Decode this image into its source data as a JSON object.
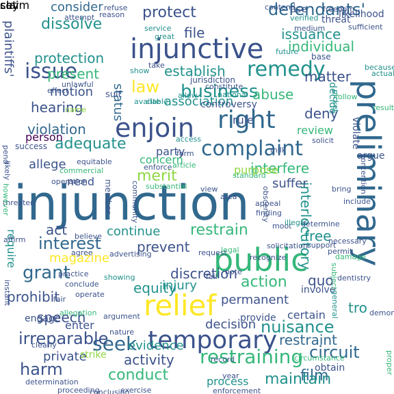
{
  "palette": {
    "dark_purple": "#440154",
    "deep_blue": "#3b528b",
    "steel_blue": "#31688e",
    "teal": "#21918c",
    "green": "#35b779",
    "light_green": "#90d743",
    "yellow": "#fde725",
    "background": "#ffffff"
  },
  "words": [
    {
      "text": "injunction",
      "color": "#31688e"
    },
    {
      "text": "preliminary",
      "color": "#31688e"
    },
    {
      "text": "injunctive",
      "color": "#3b528b"
    },
    {
      "text": "temporary",
      "color": "#3b528b"
    },
    {
      "text": "relief",
      "color": "#fde725"
    },
    {
      "text": "public",
      "color": "#35b779"
    },
    {
      "text": "enjoin",
      "color": "#3b528b"
    },
    {
      "text": "right",
      "color": "#31688e"
    },
    {
      "text": "complaint",
      "color": "#31688e"
    },
    {
      "text": "remedy",
      "color": "#21918c"
    },
    {
      "text": "issue",
      "color": "#3b528b"
    },
    {
      "text": "restraining",
      "color": "#35b779"
    },
    {
      "text": "seek",
      "color": "#31688e"
    },
    {
      "text": "grant",
      "color": "#31688e"
    },
    {
      "text": "irreparable",
      "color": "#3b528b"
    },
    {
      "text": "defendants'",
      "color": "#31688e"
    },
    {
      "text": "plaintiffs'",
      "color": "#3b528b"
    },
    {
      "text": "business",
      "color": "#21918c"
    },
    {
      "text": "law",
      "color": "#fde725"
    },
    {
      "text": "interest",
      "color": "#31688e"
    },
    {
      "text": "nuisance",
      "color": "#21918c"
    },
    {
      "text": "protection",
      "color": "#21918c"
    },
    {
      "text": "dissolve",
      "color": "#21918c"
    },
    {
      "text": "protect",
      "color": "#3b528b"
    },
    {
      "text": "issuance",
      "color": "#21918c"
    },
    {
      "text": "individual",
      "color": "#35b779"
    },
    {
      "text": "establish",
      "color": "#21918c"
    },
    {
      "text": "hearing",
      "color": "#3b528b"
    },
    {
      "text": "adequate",
      "color": "#21918c"
    },
    {
      "text": "violation",
      "color": "#31688e"
    },
    {
      "text": "merit",
      "color": "#90d743"
    },
    {
      "text": "interfere",
      "color": "#35b779"
    },
    {
      "text": "action",
      "color": "#35b779"
    },
    {
      "text": "discretion",
      "color": "#3b528b"
    },
    {
      "text": "restrain",
      "color": "#35b779"
    },
    {
      "text": "equity",
      "color": "#21918c"
    },
    {
      "text": "speech",
      "color": "#3b528b"
    },
    {
      "text": "harm",
      "color": "#3b528b"
    },
    {
      "text": "circuit",
      "color": "#31688e"
    },
    {
      "text": "restraint",
      "color": "#31688e"
    },
    {
      "text": "activity",
      "color": "#3b528b"
    },
    {
      "text": "conduct",
      "color": "#35b779"
    },
    {
      "text": "evidence",
      "color": "#21918c"
    },
    {
      "text": "film",
      "color": "#31688e"
    },
    {
      "text": "status",
      "color": "#31688e"
    },
    {
      "text": "association",
      "color": "#21918c"
    },
    {
      "text": "interlocutory",
      "color": "#21918c"
    },
    {
      "text": "abuse",
      "color": "#35b779"
    },
    {
      "text": "matter",
      "color": "#3b528b"
    },
    {
      "text": "motion",
      "color": "#3b528b"
    },
    {
      "text": "present",
      "color": "#35b779"
    },
    {
      "text": "consider",
      "color": "#31688e"
    },
    {
      "text": "file",
      "color": "#3b528b"
    },
    {
      "text": "deny",
      "color": "#3b528b"
    },
    {
      "text": "review",
      "color": "#35b779"
    },
    {
      "text": "person",
      "color": "#440154"
    },
    {
      "text": "party",
      "color": "#3b528b"
    },
    {
      "text": "allege",
      "color": "#3b528b"
    },
    {
      "text": "concern",
      "color": "#35b779"
    },
    {
      "text": "need",
      "color": "#3b528b"
    },
    {
      "text": "suffer",
      "color": "#3b528b"
    },
    {
      "text": "act",
      "color": "#3b528b"
    },
    {
      "text": "continue",
      "color": "#21918c"
    },
    {
      "text": "prevent",
      "color": "#3b528b"
    },
    {
      "text": "free",
      "color": "#21918c"
    },
    {
      "text": "quo",
      "color": "#3b528b"
    },
    {
      "text": "magazine",
      "color": "#fde725"
    },
    {
      "text": "require",
      "color": "#21918c"
    },
    {
      "text": "prohibit",
      "color": "#3b528b"
    },
    {
      "text": "injury",
      "color": "#21918c"
    },
    {
      "text": "permanent",
      "color": "#3b528b"
    },
    {
      "text": "decision",
      "color": "#3b528b"
    },
    {
      "text": "certain",
      "color": "#3b528b"
    },
    {
      "text": "tro",
      "color": "#21918c"
    },
    {
      "text": "private",
      "color": "#3b528b"
    },
    {
      "text": "maintain",
      "color": "#21918c"
    },
    {
      "text": "purpose",
      "color": "#90d743"
    },
    {
      "text": "rule",
      "color": "#3b528b"
    },
    {
      "text": "controversy",
      "color": "#3b528b"
    },
    {
      "text": "member",
      "color": "#3b528b"
    },
    {
      "text": "involve",
      "color": "#3b528b"
    },
    {
      "text": "decide",
      "color": "#21918c"
    },
    {
      "text": "violate",
      "color": "#3b528b"
    },
    {
      "text": "argue",
      "color": "#3b528b"
    },
    {
      "text": "obtain",
      "color": "#3b528b"
    },
    {
      "text": "provide",
      "color": "#3b528b"
    },
    {
      "text": "process",
      "color": "#21918c"
    },
    {
      "text": "strike",
      "color": "#90d743"
    },
    {
      "text": "enter",
      "color": "#3b528b"
    },
    {
      "text": "engage",
      "color": "#3b528b"
    },
    {
      "text": "success",
      "color": "#3b528b"
    },
    {
      "text": "threat",
      "color": "#3b528b"
    },
    {
      "text": "use",
      "color": "#3b528b"
    },
    {
      "text": "likelihood",
      "color": "#3b528b"
    },
    {
      "text": "freedom",
      "color": "#3b528b"
    },
    {
      "text": "contend",
      "color": "#3b528b"
    },
    {
      "text": "verified",
      "color": "#21918c"
    },
    {
      "text": "refuse",
      "color": "#3b528b"
    },
    {
      "text": "reason",
      "color": "#3b528b"
    },
    {
      "text": "jurisdiction",
      "color": "#3b528b"
    },
    {
      "text": "constitute",
      "color": "#3b528b"
    },
    {
      "text": "take",
      "color": "#3b528b"
    },
    {
      "text": "medium",
      "color": "#3b528b"
    },
    {
      "text": "future",
      "color": "#21918c"
    },
    {
      "text": "great",
      "color": "#21918c"
    },
    {
      "text": "service",
      "color": "#21918c"
    },
    {
      "text": "sufficient",
      "color": "#3b528b"
    },
    {
      "text": "base",
      "color": "#3b528b"
    },
    {
      "text": "because",
      "color": "#21918c"
    },
    {
      "text": "show",
      "color": "#21918c"
    },
    {
      "text": "suit",
      "color": "#3b528b"
    },
    {
      "text": "picket",
      "color": "#21918c"
    },
    {
      "text": "national",
      "color": "#21918c"
    },
    {
      "text": "available",
      "color": "#21918c"
    },
    {
      "text": "allow",
      "color": "#21918c"
    },
    {
      "text": "cite",
      "color": "#21918c"
    },
    {
      "text": "result",
      "color": "#35b779"
    },
    {
      "text": "solicit",
      "color": "#3b528b"
    },
    {
      "text": "milk",
      "color": "#3b528b"
    },
    {
      "text": "access",
      "color": "#21918c"
    },
    {
      "text": "form",
      "color": "#3b528b"
    },
    {
      "text": "equitable",
      "color": "#3b528b"
    },
    {
      "text": "commercial",
      "color": "#35b779"
    },
    {
      "text": "enforce",
      "color": "#3b528b"
    },
    {
      "text": "article",
      "color": "#35b779"
    },
    {
      "text": "standard",
      "color": "#35b779"
    },
    {
      "text": "obscenity",
      "color": "#3b528b"
    },
    {
      "text": "appeal",
      "color": "#3b528b"
    },
    {
      "text": "finding",
      "color": "#3b528b"
    },
    {
      "text": "moot",
      "color": "#3b528b"
    },
    {
      "text": "bring",
      "color": "#3b528b"
    },
    {
      "text": "include",
      "color": "#3b528b"
    },
    {
      "text": "illegal",
      "color": "#21918c"
    },
    {
      "text": "determine",
      "color": "#3b528b"
    },
    {
      "text": "solicitation",
      "color": "#3b528b"
    },
    {
      "text": "support",
      "color": "#3b528b"
    },
    {
      "text": "permit",
      "color": "#3b528b"
    },
    {
      "text": "damage",
      "color": "#35b779"
    },
    {
      "text": "request",
      "color": "#3b528b"
    },
    {
      "text": "recognize",
      "color": "#3b528b"
    },
    {
      "text": "note",
      "color": "#3b528b"
    },
    {
      "text": "legal",
      "color": "#35b779"
    },
    {
      "text": "substantial",
      "color": "#35b779"
    },
    {
      "text": "view",
      "color": "#3b528b"
    },
    {
      "text": "area",
      "color": "#3b528b"
    },
    {
      "text": "community",
      "color": "#3b528b"
    },
    {
      "text": "operation",
      "color": "#3b528b"
    },
    {
      "text": "believe",
      "color": "#3b528b"
    },
    {
      "text": "agree",
      "color": "#3b528b"
    },
    {
      "text": "advertising",
      "color": "#3b528b"
    },
    {
      "text": "showing",
      "color": "#21918c"
    },
    {
      "text": "conclude",
      "color": "#3b528b"
    },
    {
      "text": "practice",
      "color": "#3b528b"
    },
    {
      "text": "operate",
      "color": "#3b528b"
    },
    {
      "text": "fail",
      "color": "#3b528b"
    },
    {
      "text": "subject",
      "color": "#35b779"
    },
    {
      "text": "general",
      "color": "#21918c"
    },
    {
      "text": "dentistry",
      "color": "#3b528b"
    },
    {
      "text": "necessary",
      "color": "#3b528b"
    },
    {
      "text": "proper",
      "color": "#35b779"
    },
    {
      "text": "demonstrate",
      "color": "#3b528b"
    },
    {
      "text": "circumstance",
      "color": "#35b779"
    },
    {
      "text": "record",
      "color": "#3b528b"
    },
    {
      "text": "year",
      "color": "#3b528b"
    },
    {
      "text": "argument",
      "color": "#3b528b"
    },
    {
      "text": "nature",
      "color": "#3b528b"
    },
    {
      "text": "fair",
      "color": "#3b528b"
    },
    {
      "text": "allegation",
      "color": "#35b779"
    },
    {
      "text": "clearly",
      "color": "#3b528b"
    },
    {
      "text": "determination",
      "color": "#3b528b"
    },
    {
      "text": "proceeding",
      "color": "#3b528b"
    },
    {
      "text": "conclusion",
      "color": "#3b528b"
    },
    {
      "text": "exercise",
      "color": "#3b528b"
    },
    {
      "text": "enforcement",
      "color": "#3b528b"
    },
    {
      "text": "instant",
      "color": "#3b528b"
    },
    {
      "text": "threaten",
      "color": "#3b528b"
    },
    {
      "text": "however",
      "color": "#35b779"
    },
    {
      "text": "affirm",
      "color": "#3b528b"
    },
    {
      "text": "pend",
      "color": "#3b528b"
    },
    {
      "text": "likely",
      "color": "#3b528b"
    },
    {
      "text": "effect",
      "color": "#3b528b"
    },
    {
      "text": "unlawful",
      "color": "#3b528b"
    },
    {
      "text": "name",
      "color": "#90d743"
    },
    {
      "text": "attempt",
      "color": "#3b528b"
    },
    {
      "text": "follow",
      "color": "#35b779"
    },
    {
      "text": "actual",
      "color": "#21918c"
    },
    {
      "text": "contention",
      "color": "#3b528b"
    },
    {
      "text": "set",
      "color": "#3b528b"
    },
    {
      "text": "say",
      "color": "#3b528b"
    },
    {
      "text": "claim",
      "color": "#3b528b"
    }
  ]
}
